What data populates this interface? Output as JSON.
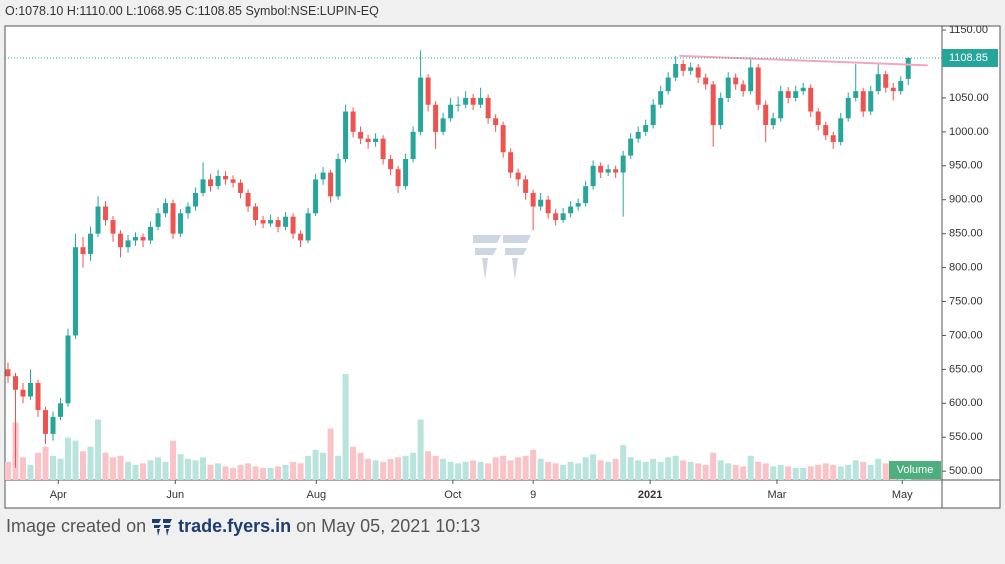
{
  "header_text": "O:1078.10 H:1110.00 L:1068.95 C:1108.85 Symbol:NSE:LUPIN-EQ",
  "chart_data": {
    "type": "candlestick",
    "up_color": "#26a69a",
    "down_color": "#ef5350",
    "volume_up_color": "#b9e3dd",
    "volume_down_color": "#f9c3c7",
    "xlim": [
      -0.4,
      124.5
    ],
    "xticks": [
      {
        "value": 6.7,
        "label": "Apr"
      },
      {
        "value": 22.3,
        "label": "Jun"
      },
      {
        "value": 41.1,
        "label": "Aug"
      },
      {
        "value": 59.3,
        "label": "Oct"
      },
      {
        "value": 70,
        "label": "9"
      },
      {
        "value": 85.6,
        "label": "2021"
      },
      {
        "value": 102.5,
        "label": "Mar"
      },
      {
        "value": 119.2,
        "label": "May"
      }
    ],
    "ylim": [
      487,
      1156
    ],
    "yticks": [
      {
        "value": 500,
        "label": "500.00"
      },
      {
        "value": 550,
        "label": "550.00"
      },
      {
        "value": 600,
        "label": "600.00"
      },
      {
        "value": 650,
        "label": "650.00"
      },
      {
        "value": 700,
        "label": "700.00"
      },
      {
        "value": 750,
        "label": "750.00"
      },
      {
        "value": 800,
        "label": "800.00"
      },
      {
        "value": 850,
        "label": "850.00"
      },
      {
        "value": 900,
        "label": "900.00"
      },
      {
        "value": 950,
        "label": "950.00"
      },
      {
        "value": 1000,
        "label": "1000.00"
      },
      {
        "value": 1050,
        "label": "1050.00"
      },
      {
        "value": 1100,
        "label": "1100.00"
      },
      {
        "value": 1150,
        "label": "1150.00"
      }
    ],
    "candles": [
      [
        650,
        660,
        630,
        640
      ],
      [
        640,
        645,
        505,
        620
      ],
      [
        620,
        630,
        600,
        610
      ],
      [
        610,
        650,
        605,
        630
      ],
      [
        630,
        635,
        580,
        590
      ],
      [
        590,
        595,
        540,
        555
      ],
      [
        555,
        588,
        545,
        580
      ],
      [
        580,
        608,
        575,
        600
      ],
      [
        600,
        710,
        595,
        700
      ],
      [
        700,
        850,
        695,
        830
      ],
      [
        830,
        845,
        800,
        820
      ],
      [
        820,
        860,
        810,
        850
      ],
      [
        850,
        905,
        845,
        890
      ],
      [
        890,
        898,
        862,
        870
      ],
      [
        870,
        876,
        838,
        850
      ],
      [
        850,
        855,
        815,
        830
      ],
      [
        830,
        848,
        822,
        840
      ],
      [
        840,
        852,
        832,
        845
      ],
      [
        845,
        850,
        830,
        840
      ],
      [
        840,
        868,
        835,
        860
      ],
      [
        860,
        888,
        855,
        880
      ],
      [
        880,
        902,
        874,
        895
      ],
      [
        895,
        900,
        842,
        850
      ],
      [
        850,
        886,
        845,
        880
      ],
      [
        880,
        896,
        872,
        890
      ],
      [
        890,
        918,
        884,
        910
      ],
      [
        910,
        955,
        905,
        930
      ],
      [
        930,
        938,
        912,
        920
      ],
      [
        920,
        944,
        915,
        935
      ],
      [
        935,
        942,
        922,
        930
      ],
      [
        930,
        936,
        918,
        925
      ],
      [
        925,
        930,
        902,
        910
      ],
      [
        910,
        915,
        882,
        890
      ],
      [
        890,
        895,
        862,
        870
      ],
      [
        870,
        876,
        858,
        865
      ],
      [
        865,
        878,
        860,
        870
      ],
      [
        870,
        875,
        852,
        860
      ],
      [
        860,
        882,
        855,
        875
      ],
      [
        875,
        880,
        842,
        850
      ],
      [
        850,
        855,
        830,
        840
      ],
      [
        840,
        888,
        836,
        880
      ],
      [
        880,
        938,
        876,
        930
      ],
      [
        930,
        948,
        922,
        940
      ],
      [
        940,
        944,
        896,
        905
      ],
      [
        905,
        968,
        900,
        960
      ],
      [
        960,
        1040,
        955,
        1030
      ],
      [
        1030,
        1036,
        992,
        1000
      ],
      [
        1000,
        1008,
        982,
        990
      ],
      [
        990,
        996,
        975,
        985
      ],
      [
        985,
        998,
        978,
        990
      ],
      [
        990,
        995,
        952,
        960
      ],
      [
        960,
        966,
        936,
        945
      ],
      [
        945,
        950,
        910,
        920
      ],
      [
        920,
        968,
        915,
        960
      ],
      [
        960,
        1008,
        955,
        1000
      ],
      [
        1000,
        1120,
        995,
        1080
      ],
      [
        1080,
        1085,
        1030,
        1040
      ],
      [
        1040,
        1045,
        975,
        1000
      ],
      [
        1000,
        1028,
        995,
        1020
      ],
      [
        1020,
        1050,
        1015,
        1040
      ],
      [
        1040,
        1052,
        1030,
        1040
      ],
      [
        1040,
        1060,
        1035,
        1050
      ],
      [
        1050,
        1056,
        1032,
        1040
      ],
      [
        1040,
        1065,
        1035,
        1050
      ],
      [
        1050,
        1055,
        1012,
        1020
      ],
      [
        1020,
        1026,
        1000,
        1010
      ],
      [
        1010,
        1015,
        962,
        970
      ],
      [
        970,
        976,
        932,
        940
      ],
      [
        940,
        946,
        920,
        930
      ],
      [
        930,
        936,
        900,
        910
      ],
      [
        910,
        915,
        855,
        890
      ],
      [
        890,
        910,
        884,
        900
      ],
      [
        900,
        906,
        872,
        880
      ],
      [
        880,
        886,
        862,
        870
      ],
      [
        870,
        888,
        866,
        880
      ],
      [
        880,
        898,
        874,
        890
      ],
      [
        890,
        902,
        884,
        895
      ],
      [
        895,
        928,
        890,
        920
      ],
      [
        920,
        958,
        915,
        950
      ],
      [
        950,
        955,
        932,
        940
      ],
      [
        940,
        952,
        935,
        945
      ],
      [
        945,
        950,
        932,
        940
      ],
      [
        940,
        972,
        875,
        965
      ],
      [
        965,
        998,
        960,
        990
      ],
      [
        990,
        1008,
        984,
        1000
      ],
      [
        1000,
        1018,
        994,
        1010
      ],
      [
        1010,
        1048,
        1005,
        1040
      ],
      [
        1040,
        1068,
        1035,
        1060
      ],
      [
        1060,
        1088,
        1055,
        1080
      ],
      [
        1080,
        1112,
        1075,
        1100
      ],
      [
        1100,
        1106,
        1082,
        1090
      ],
      [
        1090,
        1102,
        1084,
        1095
      ],
      [
        1095,
        1100,
        1072,
        1080
      ],
      [
        1080,
        1086,
        1062,
        1070
      ],
      [
        1070,
        1075,
        978,
        1010
      ],
      [
        1010,
        1058,
        1004,
        1050
      ],
      [
        1050,
        1088,
        1044,
        1080
      ],
      [
        1080,
        1086,
        1062,
        1070
      ],
      [
        1070,
        1076,
        1052,
        1060
      ],
      [
        1060,
        1110,
        1055,
        1095
      ],
      [
        1095,
        1100,
        1032,
        1040
      ],
      [
        1040,
        1046,
        985,
        1010
      ],
      [
        1010,
        1028,
        1004,
        1020
      ],
      [
        1020,
        1068,
        1015,
        1060
      ],
      [
        1060,
        1066,
        1042,
        1050
      ],
      [
        1050,
        1068,
        1045,
        1060
      ],
      [
        1060,
        1072,
        1054,
        1065
      ],
      [
        1065,
        1070,
        1022,
        1030
      ],
      [
        1030,
        1035,
        1002,
        1010
      ],
      [
        1010,
        1015,
        988,
        995
      ],
      [
        995,
        1000,
        975,
        985
      ],
      [
        985,
        1028,
        980,
        1020
      ],
      [
        1020,
        1058,
        1015,
        1050
      ],
      [
        1050,
        1100,
        1045,
        1060
      ],
      [
        1060,
        1065,
        1022,
        1030
      ],
      [
        1030,
        1068,
        1025,
        1060
      ],
      [
        1060,
        1100,
        1055,
        1085
      ],
      [
        1085,
        1090,
        1058,
        1065
      ],
      [
        1065,
        1072,
        1046,
        1060
      ],
      [
        1060,
        1082,
        1055,
        1075
      ],
      [
        1078.1,
        1110.0,
        1068.95,
        1108.85
      ]
    ],
    "volume_label": "Volume",
    "volume_ylim": [
      0,
      30
    ],
    "volume": [
      1.2,
      3.8,
      1.5,
      1.0,
      1.8,
      2.2,
      1.6,
      1.4,
      2.8,
      2.6,
      1.9,
      2.2,
      4.0,
      1.8,
      1.5,
      1.6,
      1.2,
      1.0,
      1.1,
      1.3,
      1.5,
      1.2,
      2.6,
      1.7,
      1.4,
      1.3,
      1.5,
      1.0,
      1.1,
      0.9,
      0.8,
      1.0,
      1.1,
      0.9,
      0.8,
      0.8,
      0.9,
      1.0,
      1.2,
      1.1,
      1.6,
      2.0,
      1.8,
      3.4,
      1.6,
      7.0,
      2.2,
      1.8,
      1.4,
      1.3,
      1.2,
      1.4,
      1.5,
      1.6,
      1.8,
      4.0,
      1.9,
      1.6,
      1.4,
      1.2,
      1.1,
      1.2,
      1.3,
      1.2,
      1.1,
      1.5,
      1.6,
      1.3,
      1.5,
      1.6,
      2.0,
      1.4,
      1.2,
      1.1,
      1.0,
      1.2,
      1.1,
      1.5,
      1.7,
      1.3,
      1.2,
      1.4,
      2.3,
      1.5,
      1.3,
      1.2,
      1.4,
      1.2,
      1.5,
      1.6,
      1.3,
      1.2,
      1.1,
      1.0,
      1.8,
      1.3,
      1.1,
      1.0,
      0.9,
      1.6,
      1.2,
      1.1,
      0.9,
      1.0,
      0.9,
      0.8,
      0.8,
      0.9,
      1.0,
      1.1,
      1.0,
      0.9,
      1.0,
      1.3,
      1.2,
      1.0,
      1.4,
      1.1,
      1.0,
      0.9,
      1.2
    ],
    "trendline": {
      "x": [
        89.5,
        122.6
      ],
      "y": [
        1112,
        1098
      ],
      "color": "#f4a6c0"
    }
  },
  "footer": {
    "prefix": "Image created on",
    "brand": "trade.fyers.in",
    "suffix": "on May 05, 2021 10:13"
  }
}
